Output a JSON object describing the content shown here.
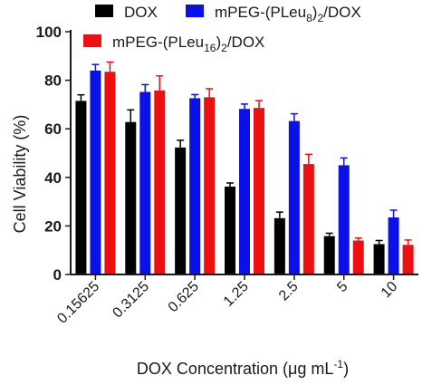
{
  "chart_data": {
    "type": "bar",
    "xlabel": "DOX Concentration (μg mL",
    "xlabel_sup": "-1",
    "xlabel_close": ")",
    "ylabel": "Cell Viability (%)",
    "ylim": [
      0,
      100
    ],
    "yticks": [
      0,
      20,
      40,
      60,
      80,
      100
    ],
    "categories": [
      "0.15625",
      "0.3125",
      "0.625",
      "1.25",
      "2.5",
      "5",
      "10"
    ],
    "legend_placement": "top",
    "series": [
      {
        "name": "DOX",
        "name_parts": {
          "main": "DOX",
          "sub": "",
          "post": ""
        },
        "color": "#000000",
        "values": [
          71.5,
          62.8,
          52.3,
          36.2,
          23.2,
          15.8,
          12.5
        ],
        "errors": [
          2.5,
          5.0,
          3.0,
          1.5,
          2.5,
          1.2,
          1.5
        ]
      },
      {
        "name": "mPEG-(PLeu8)2/DOX",
        "name_parts": {
          "main": "mPEG-(PLeu",
          "sub": "8",
          "mid": ")",
          "sub2": "2",
          "post": "/DOX"
        },
        "color": "#0a10e8",
        "values": [
          84.0,
          75.2,
          72.6,
          68.2,
          63.2,
          45.0,
          23.5
        ],
        "errors": [
          2.5,
          3.0,
          1.5,
          2.0,
          3.0,
          3.0,
          3.0
        ]
      },
      {
        "name": "mPEG-(PLeu16)2/DOX",
        "name_parts": {
          "main": "mPEG-(PLeu",
          "sub": "16",
          "mid": ")",
          "sub2": "2",
          "post": "/DOX"
        },
        "color": "#ee1010",
        "values": [
          83.5,
          75.8,
          73.0,
          68.6,
          45.5,
          14.0,
          12.2
        ],
        "errors": [
          4.0,
          6.0,
          3.5,
          3.0,
          4.0,
          1.0,
          2.0
        ]
      }
    ]
  }
}
